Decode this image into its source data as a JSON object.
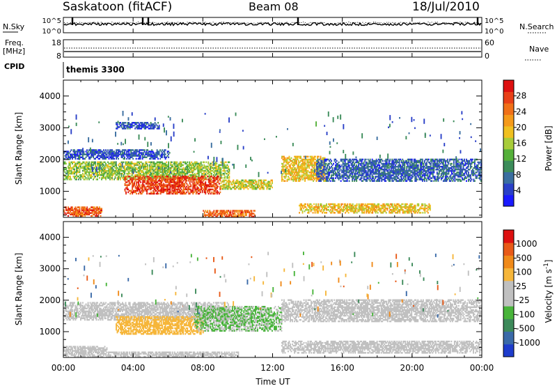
{
  "header": {
    "station": "Saskatoon (fitACF)",
    "beam": "Beam 08",
    "date": "18/Jul/2010"
  },
  "strip_panels": {
    "nsky_label": "N.Sky",
    "nsky_ticks": [
      "10^5",
      "10^0"
    ],
    "nsearch_label": "N.Search",
    "nsearch_ticks": [
      "10^5",
      "10^0"
    ],
    "freq_label_1": "Freq.",
    "freq_label_2": "[MHz]",
    "freq_ticks": [
      "18",
      "8"
    ],
    "nave_label": "Nave",
    "nave_ticks": [
      "60",
      "0"
    ],
    "cpid_label": "CPID",
    "cpid_value": "themis 3300"
  },
  "x_axis": {
    "title": "Time UT",
    "ticks": [
      "00:00",
      "04:00",
      "08:00",
      "12:00",
      "16:00",
      "20:00",
      "00:00"
    ]
  },
  "chart_data": [
    {
      "type": "heatmap",
      "title": "",
      "xlabel": "Time UT",
      "ylabel": "Slant Range [km]",
      "xlim": [
        0,
        24
      ],
      "ylim": [
        180,
        4500
      ],
      "yticks": [
        "1000",
        "2000",
        "3000",
        "4000"
      ],
      "colorbar_label": "Power [dB]",
      "colorbar_ticks": [
        "4",
        "8",
        "12",
        "16",
        "20",
        "24",
        "28"
      ],
      "colorbar_range": [
        0,
        30
      ],
      "colorscale": [
        "#1a1aff",
        "#2a40c8",
        "#3a6ea0",
        "#3c8c5a",
        "#55b03a",
        "#a8cc3a",
        "#f0c020",
        "#f59a1a",
        "#f07018",
        "#e84018",
        "#dd1010"
      ],
      "blobs": [
        {
          "t0": 0.0,
          "t1": 9.5,
          "r0": 1350,
          "r1": 1900,
          "val": 14
        },
        {
          "t0": 3.5,
          "t1": 9.0,
          "r0": 900,
          "r1": 1450,
          "val": 26
        },
        {
          "t0": 0.0,
          "t1": 2.2,
          "r0": 200,
          "r1": 500,
          "val": 25
        },
        {
          "t0": 8.0,
          "t1": 11.0,
          "r0": 180,
          "r1": 380,
          "val": 24
        },
        {
          "t0": 13.5,
          "t1": 21.0,
          "r0": 300,
          "r1": 600,
          "val": 18
        },
        {
          "t0": 12.5,
          "t1": 15.0,
          "r0": 1300,
          "r1": 2100,
          "val": 18
        },
        {
          "t0": 14.5,
          "t1": 24.0,
          "r0": 1300,
          "r1": 2000,
          "val": 6
        },
        {
          "t0": 0.0,
          "t1": 6.0,
          "r0": 2000,
          "r1": 2300,
          "val": 5
        },
        {
          "t0": 9.0,
          "t1": 12.0,
          "r0": 1050,
          "r1": 1350,
          "val": 16
        },
        {
          "t0": 3.0,
          "t1": 5.5,
          "r0": 2950,
          "r1": 3150,
          "val": 5
        }
      ]
    },
    {
      "type": "heatmap",
      "title": "",
      "xlabel": "Time UT",
      "ylabel": "Slant Range [km]",
      "xlim": [
        0,
        24
      ],
      "ylim": [
        180,
        4500
      ],
      "yticks": [
        "1000",
        "2000",
        "3000",
        "4000"
      ],
      "colorbar_label": "Velocity [m s^-1]",
      "colorbar_ticks": [
        "1000",
        "500",
        "100",
        "25",
        "-25",
        "-100",
        "-500",
        "-1000"
      ],
      "colorbar_range": [
        -1200,
        1200
      ],
      "colorscale": [
        "#1e3ccc",
        "#3a6aa8",
        "#3d8a5a",
        "#48b43a",
        "#c0c0c0",
        "#c0c0c0",
        "#f6b63a",
        "#f08a1a",
        "#e85a18",
        "#dd1010"
      ],
      "blobs": [
        {
          "t0": 0.0,
          "t1": 9.5,
          "r0": 1350,
          "r1": 1900,
          "val": 0
        },
        {
          "t0": 3.0,
          "t1": 8.0,
          "r0": 900,
          "r1": 1450,
          "val": 300
        },
        {
          "t0": 7.5,
          "t1": 12.5,
          "r0": 1000,
          "r1": 1800,
          "val": -250
        },
        {
          "t0": 0.0,
          "t1": 2.5,
          "r0": 180,
          "r1": 500,
          "val": 0
        },
        {
          "t0": 12.5,
          "t1": 24.0,
          "r0": 300,
          "r1": 700,
          "val": 0
        },
        {
          "t0": 12.5,
          "t1": 24.0,
          "r0": 1300,
          "r1": 2000,
          "val": 0
        },
        {
          "t0": 2.5,
          "t1": 10.0,
          "r0": 180,
          "r1": 350,
          "val": 10
        }
      ]
    }
  ]
}
